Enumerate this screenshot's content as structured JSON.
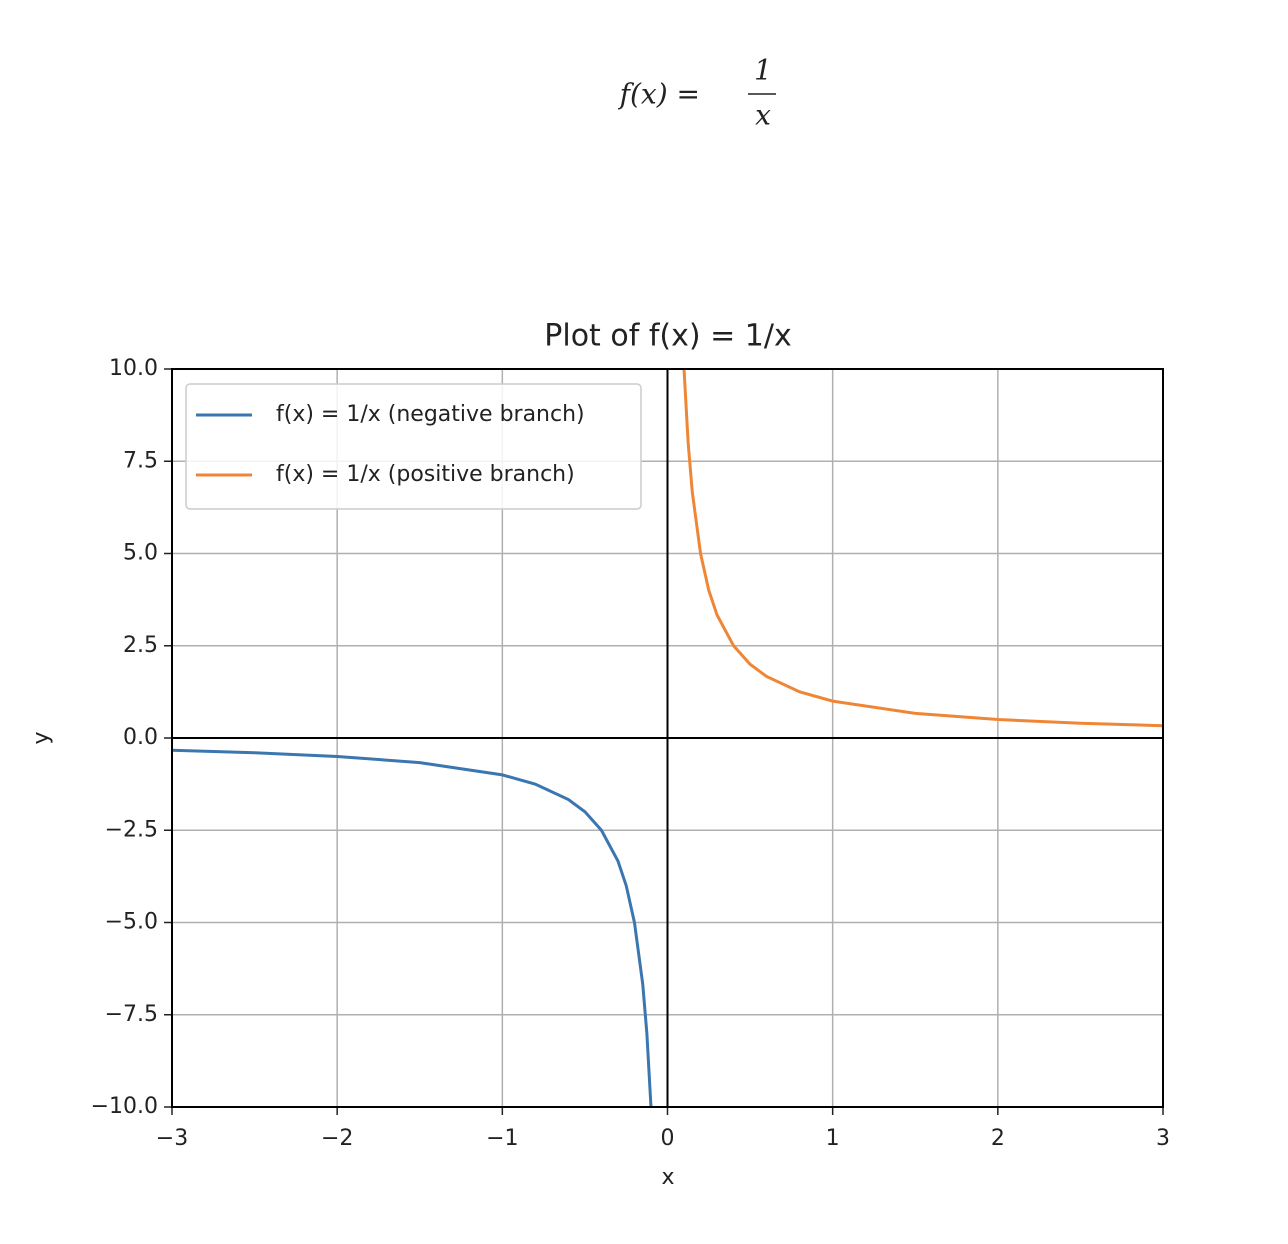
{
  "header": {
    "lhs": "f(x) =",
    "numerator": "1",
    "denominator": "x"
  },
  "chart_data": {
    "type": "line",
    "title": "Plot of f(x) = 1/x",
    "xlabel": "x",
    "ylabel": "y",
    "series": [
      {
        "name": "f(x) = 1/x (negative branch)",
        "color": "#3a76af",
        "x": [
          -3,
          -2.5,
          -2,
          -1.5,
          -1,
          -0.8,
          -0.6,
          -0.5,
          -0.4,
          -0.3,
          -0.25,
          -0.2,
          -0.15,
          -0.125,
          -0.1
        ],
        "values": [
          -0.333,
          -0.4,
          -0.5,
          -0.667,
          -1,
          -1.25,
          -1.667,
          -2,
          -2.5,
          -3.333,
          -4,
          -5,
          -6.667,
          -8,
          -10
        ]
      },
      {
        "name": "f(x) = 1/x (positive branch)",
        "color": "#ef8636",
        "x": [
          0.1,
          0.125,
          0.15,
          0.2,
          0.25,
          0.3,
          0.4,
          0.5,
          0.6,
          0.8,
          1,
          1.5,
          2,
          2.5,
          3
        ],
        "values": [
          10,
          8,
          6.667,
          5,
          4,
          3.333,
          2.5,
          2,
          1.667,
          1.25,
          1,
          0.667,
          0.5,
          0.4,
          0.333
        ]
      }
    ],
    "xlim": [
      -3,
      3
    ],
    "ylim": [
      -10,
      10
    ],
    "xticks": [
      {
        "value": -3,
        "label": "−3"
      },
      {
        "value": -2,
        "label": "−2"
      },
      {
        "value": -1,
        "label": "−1"
      },
      0,
      1,
      2,
      3
    ],
    "yticks": [
      {
        "value": -10,
        "label": "−10.0"
      },
      {
        "value": -7.5,
        "label": "−7.5"
      },
      {
        "value": -5,
        "label": "−5.0"
      },
      {
        "value": -2.5,
        "label": "−2.5"
      },
      {
        "value": 0,
        "label": "0.0"
      },
      {
        "value": 2.5,
        "label": "2.5"
      },
      {
        "value": 5,
        "label": "5.0"
      },
      {
        "value": 7.5,
        "label": "7.5"
      },
      {
        "value": 10,
        "label": "10.0"
      }
    ],
    "hline": 0,
    "vline": 0,
    "grid": true,
    "legend": "upper left"
  }
}
